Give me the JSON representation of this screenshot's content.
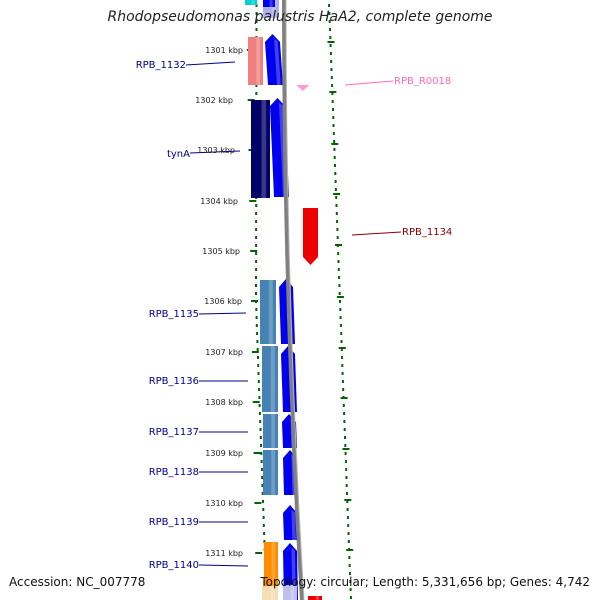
{
  "title": "Rhodopseudomonas palustris HaA2, complete genome",
  "footer": {
    "accession": "Accession: NC_007778",
    "topology": "Topology: circular; Length: 5,331,656 bp; Genes: 4,742"
  },
  "ruler": [
    "1301 kbp",
    "1302 kbp",
    "1303 kbp",
    "1304 kbp",
    "1305 kbp",
    "1306 kbp",
    "1307 kbp",
    "1308 kbp",
    "1309 kbp",
    "1310 kbp",
    "1311 kbp"
  ],
  "gene_labels": {
    "left": [
      "RPB_1132",
      "tynA",
      "RPB_1135",
      "RPB_1136",
      "RPB_1137",
      "RPB_1138",
      "RPB_1139",
      "RPB_1140"
    ],
    "right": [
      "RPB_R0018",
      "RPB_1134"
    ]
  },
  "colors": {
    "forward_cds": "#0000ee",
    "reverse_cds": "#ee0000",
    "rna": "#ff99cc",
    "navy": "#000066",
    "steel": "#4682b4",
    "salmon": "#f08080",
    "orange": "#ff8c00",
    "tick": "#006400",
    "backbone": "#808080",
    "label_blue": "#00008b",
    "label_red": "#8b0000",
    "label_pink": "#ff69b4"
  }
}
